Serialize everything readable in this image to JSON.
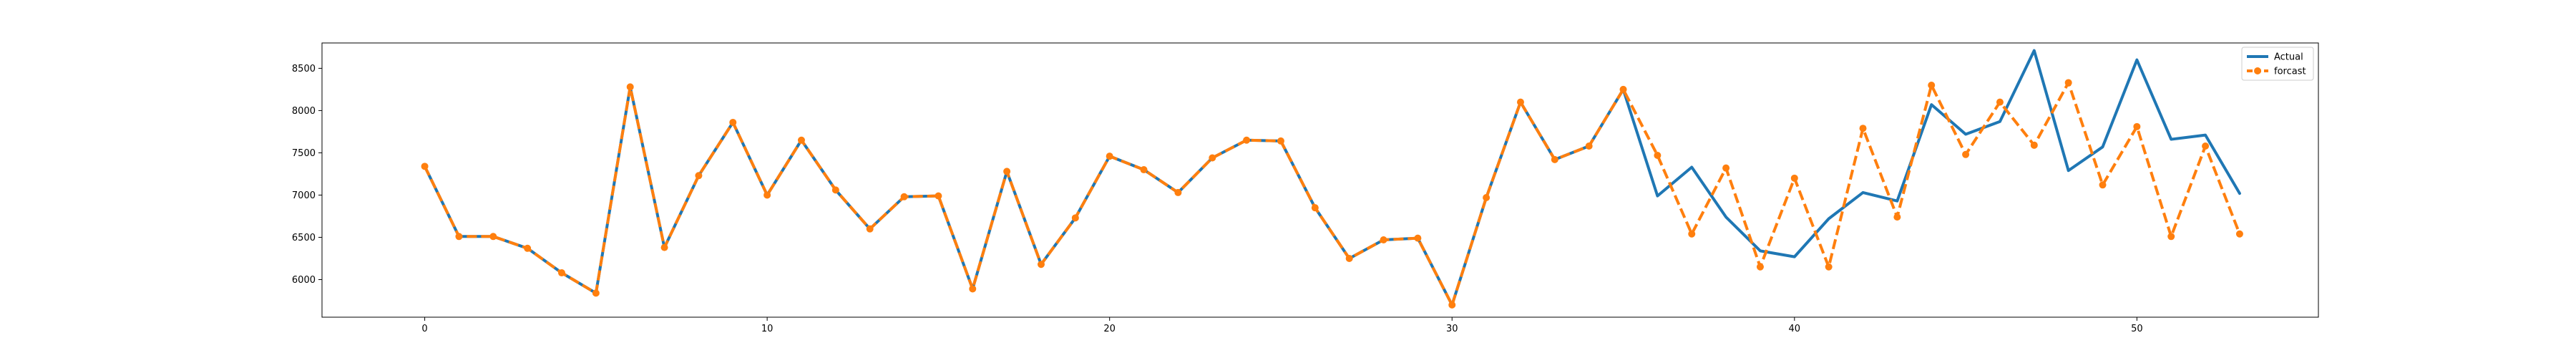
{
  "chart_data": {
    "type": "line",
    "title": "",
    "xlabel": "",
    "ylabel": "",
    "xlim": [
      -3.0,
      55.3
    ],
    "ylim": [
      5555,
      8800
    ],
    "x_ticks": [
      0,
      10,
      20,
      30,
      40,
      50
    ],
    "y_ticks": [
      6000,
      6500,
      7000,
      7500,
      8000,
      8500
    ],
    "grid": false,
    "legend_position": "top-right",
    "series": [
      {
        "name": "Actual",
        "color": "#1f77b4",
        "style": "solid",
        "marker": "none",
        "x": [
          0,
          1,
          2,
          3,
          4,
          5,
          6,
          7,
          8,
          9,
          10,
          11,
          12,
          13,
          14,
          15,
          16,
          17,
          18,
          19,
          20,
          21,
          22,
          23,
          24,
          25,
          26,
          27,
          28,
          29,
          30,
          31,
          32,
          33,
          34,
          35,
          36,
          37,
          38,
          39,
          40,
          41,
          42,
          43,
          44,
          45,
          46,
          47,
          48,
          49,
          50,
          51,
          52,
          53
        ],
        "values": [
          7340,
          6510,
          6510,
          6370,
          6080,
          5840,
          8280,
          6380,
          7230,
          7860,
          7000,
          7650,
          7060,
          6600,
          6980,
          6990,
          5890,
          7280,
          6180,
          6730,
          7460,
          7300,
          7030,
          7440,
          7650,
          7640,
          6850,
          6250,
          6470,
          6490,
          5700,
          6970,
          8100,
          7420,
          7580,
          8250,
          6990,
          7330,
          6740,
          6340,
          6270,
          6720,
          7030,
          6930,
          8070,
          7720,
          7870,
          8710,
          7290,
          7570,
          8600,
          7660,
          7710,
          7020
        ]
      },
      {
        "name": "forcast",
        "color": "#ff7f0e",
        "style": "dashed",
        "marker": "circle",
        "x": [
          0,
          1,
          2,
          3,
          4,
          5,
          6,
          7,
          8,
          9,
          10,
          11,
          12,
          13,
          14,
          15,
          16,
          17,
          18,
          19,
          20,
          21,
          22,
          23,
          24,
          25,
          26,
          27,
          28,
          29,
          30,
          31,
          32,
          33,
          34,
          35,
          36,
          37,
          38,
          39,
          40,
          41,
          42,
          43,
          44,
          45,
          46,
          47,
          48,
          49,
          50,
          51,
          52,
          53
        ],
        "values": [
          7340,
          6510,
          6510,
          6370,
          6080,
          5840,
          8280,
          6380,
          7230,
          7860,
          7000,
          7650,
          7060,
          6600,
          6980,
          6990,
          5890,
          7280,
          6180,
          6730,
          7460,
          7300,
          7030,
          7440,
          7650,
          7640,
          6850,
          6250,
          6470,
          6490,
          5700,
          6970,
          8100,
          7420,
          7580,
          8250,
          7470,
          6540,
          7320,
          6150,
          7200,
          6150,
          7790,
          6740,
          8300,
          7480,
          8100,
          7590,
          8330,
          7120,
          7810,
          6510,
          7580,
          6540
        ]
      }
    ]
  }
}
